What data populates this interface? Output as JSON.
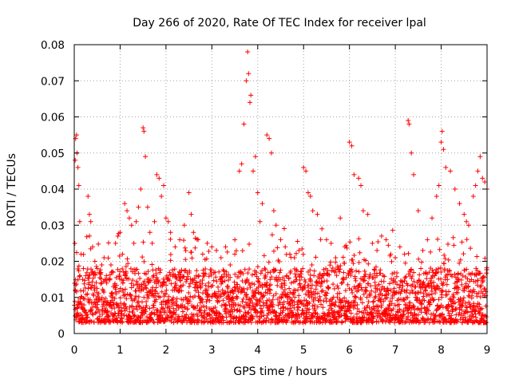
{
  "chart_data": {
    "type": "scatter",
    "title": "Day 266 of 2020, Rate Of TEC Index for receiver lpal",
    "xlabel": "GPS time / hours",
    "ylabel": "ROTI / TECUs",
    "xlim": [
      0,
      9
    ],
    "ylim": [
      0,
      0.08
    ],
    "x_ticks": [
      "0",
      "1",
      "2",
      "3",
      "4",
      "5",
      "6",
      "7",
      "8",
      "9"
    ],
    "y_ticks": [
      "0",
      "0.01",
      "0.02",
      "0.03",
      "0.04",
      "0.05",
      "0.06",
      "0.07",
      "0.08"
    ],
    "grid": true,
    "marker": "+",
    "color": "#ff0000",
    "series": [
      {
        "x": [
          0.02,
          0.03,
          0.05,
          0.06,
          0.08,
          0.1,
          0.12,
          0.15,
          0.2,
          0.25,
          0.3,
          0.33,
          0.36,
          0.4,
          0.45,
          0.5,
          0.55,
          0.6,
          0.65,
          0.7,
          0.75,
          0.8,
          0.85,
          0.9,
          0.95,
          1.0,
          1.05,
          1.1,
          1.15,
          1.2,
          1.25,
          1.3,
          1.35,
          1.4,
          1.45,
          1.5,
          1.52,
          1.55,
          1.6,
          1.65,
          1.7,
          1.75,
          1.8,
          1.85,
          1.9,
          1.95,
          2.0,
          2.05,
          2.1,
          2.2,
          2.3,
          2.4,
          2.5,
          2.55,
          2.6,
          2.7,
          2.8,
          2.9,
          3.0,
          3.1,
          3.2,
          3.3,
          3.4,
          3.5,
          3.6,
          3.65,
          3.7,
          3.75,
          3.78,
          3.8,
          3.83,
          3.85,
          3.9,
          3.95,
          4.0,
          4.05,
          4.1,
          4.2,
          4.25,
          4.3,
          4.35,
          4.4,
          4.5,
          4.6,
          4.7,
          4.8,
          4.9,
          5.0,
          5.05,
          5.1,
          5.15,
          5.2,
          5.3,
          5.4,
          5.5,
          5.6,
          5.7,
          5.8,
          5.9,
          6.0,
          6.05,
          6.1,
          6.2,
          6.25,
          6.3,
          6.4,
          6.5,
          6.6,
          6.7,
          6.8,
          6.9,
          7.0,
          7.1,
          7.2,
          7.28,
          7.3,
          7.35,
          7.4,
          7.5,
          7.6,
          7.7,
          7.8,
          7.9,
          7.95,
          8.0,
          8.02,
          8.05,
          8.1,
          8.2,
          8.3,
          8.4,
          8.5,
          8.55,
          8.6,
          8.7,
          8.75,
          8.8,
          8.85,
          8.9,
          8.95,
          9.0
        ],
        "y": [
          0.048,
          0.054,
          0.055,
          0.05,
          0.046,
          0.041,
          0.031,
          0.022,
          0.018,
          0.016,
          0.038,
          0.033,
          0.031,
          0.024,
          0.02,
          0.018,
          0.017,
          0.019,
          0.021,
          0.016,
          0.015,
          0.019,
          0.017,
          0.025,
          0.027,
          0.028,
          0.022,
          0.036,
          0.034,
          0.032,
          0.03,
          0.025,
          0.031,
          0.035,
          0.04,
          0.057,
          0.056,
          0.049,
          0.035,
          0.028,
          0.025,
          0.031,
          0.044,
          0.043,
          0.038,
          0.041,
          0.032,
          0.031,
          0.028,
          0.024,
          0.026,
          0.03,
          0.039,
          0.033,
          0.028,
          0.026,
          0.022,
          0.025,
          0.024,
          0.023,
          0.021,
          0.024,
          0.019,
          0.022,
          0.045,
          0.047,
          0.058,
          0.07,
          0.078,
          0.072,
          0.064,
          0.066,
          0.045,
          0.049,
          0.039,
          0.031,
          0.036,
          0.055,
          0.054,
          0.05,
          0.034,
          0.03,
          0.026,
          0.024,
          0.022,
          0.021,
          0.023,
          0.046,
          0.045,
          0.039,
          0.038,
          0.034,
          0.033,
          0.029,
          0.026,
          0.025,
          0.021,
          0.032,
          0.024,
          0.053,
          0.052,
          0.044,
          0.043,
          0.041,
          0.034,
          0.033,
          0.025,
          0.023,
          0.027,
          0.026,
          0.022,
          0.021,
          0.024,
          0.022,
          0.059,
          0.058,
          0.05,
          0.044,
          0.034,
          0.023,
          0.026,
          0.032,
          0.038,
          0.041,
          0.053,
          0.056,
          0.051,
          0.046,
          0.045,
          0.04,
          0.036,
          0.033,
          0.031,
          0.03,
          0.038,
          0.041,
          0.045,
          0.049,
          0.043,
          0.042,
          0.04
        ]
      }
    ],
    "baseline_band": {
      "min": 0.003,
      "max": 0.018
    }
  }
}
